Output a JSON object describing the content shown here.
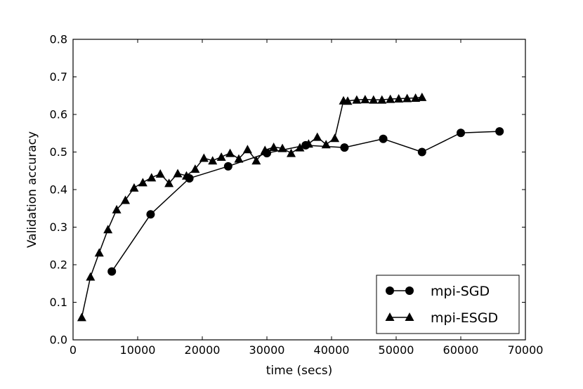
{
  "chart_data": {
    "type": "line",
    "title": "",
    "xlabel": "time (secs)",
    "ylabel": "Validation accuracy",
    "xlim": [
      0,
      70000
    ],
    "ylim": [
      0.0,
      0.8
    ],
    "xticks": [
      0,
      10000,
      20000,
      30000,
      40000,
      50000,
      60000,
      70000
    ],
    "xtick_labels": [
      "0",
      "10000",
      "20000",
      "30000",
      "40000",
      "50000",
      "60000",
      "70000"
    ],
    "yticks": [
      0.0,
      0.1,
      0.2,
      0.3,
      0.4,
      0.5,
      0.6,
      0.7,
      0.8
    ],
    "ytick_labels": [
      "0.0",
      "0.1",
      "0.2",
      "0.3",
      "0.4",
      "0.5",
      "0.6",
      "0.7",
      "0.8"
    ],
    "grid": false,
    "legend_position": "bottom-right",
    "series": [
      {
        "name": "mpi-SGD",
        "marker": "circle",
        "color": "#000000",
        "x": [
          6000,
          12000,
          18000,
          24000,
          30000,
          36000,
          42000,
          48000,
          54000,
          60000,
          66000
        ],
        "y": [
          0.182,
          0.334,
          0.43,
          0.462,
          0.497,
          0.518,
          0.512,
          0.535,
          0.5,
          0.551,
          0.555
        ]
      },
      {
        "name": "mpi-ESGD",
        "marker": "triangle",
        "color": "#000000",
        "x": [
          1350,
          2700,
          4050,
          5400,
          6750,
          8100,
          9450,
          10800,
          12150,
          13500,
          14850,
          16200,
          17550,
          18900,
          20250,
          21600,
          22950,
          24300,
          25650,
          27000,
          28350,
          29700,
          31050,
          32400,
          33750,
          35100,
          36450,
          37800,
          39150,
          40500,
          41850,
          42500,
          43900,
          45200,
          46500,
          47800,
          49100,
          50400,
          51700,
          53000,
          54000
        ],
        "y": [
          0.06,
          0.168,
          0.232,
          0.294,
          0.347,
          0.372,
          0.405,
          0.419,
          0.432,
          0.442,
          0.417,
          0.443,
          0.437,
          0.455,
          0.484,
          0.477,
          0.487,
          0.497,
          0.482,
          0.507,
          0.477,
          0.505,
          0.513,
          0.51,
          0.497,
          0.512,
          0.522,
          0.54,
          0.52,
          0.537,
          0.637,
          0.636,
          0.639,
          0.64,
          0.639,
          0.639,
          0.641,
          0.642,
          0.643,
          0.644,
          0.646
        ]
      }
    ]
  }
}
